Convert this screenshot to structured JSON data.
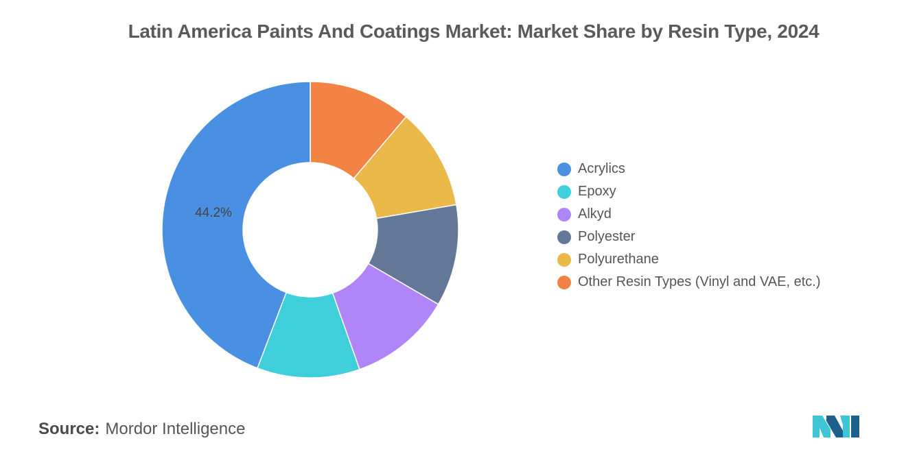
{
  "chart_data": {
    "type": "pie",
    "title": "Latin America Paints And Coatings Market: Market Share by Resin Type, 2024",
    "donut": true,
    "legend_position": "right",
    "categories": [
      "Acrylics",
      "Epoxy",
      "Alkyd",
      "Polyester",
      "Polyurethane",
      "Other Resin Types (Vinyl and VAE, etc.)"
    ],
    "values": [
      44.2,
      11.2,
      11.2,
      11.1,
      11.1,
      11.2
    ],
    "colors": [
      "#4a90e2",
      "#3fcfdb",
      "#b085f8",
      "#637796",
      "#ebb84a",
      "#f28345"
    ],
    "data_labels": {
      "Acrylics": "44.2%"
    }
  },
  "source": {
    "label": "Source:",
    "value": "Mordor Intelligence"
  }
}
